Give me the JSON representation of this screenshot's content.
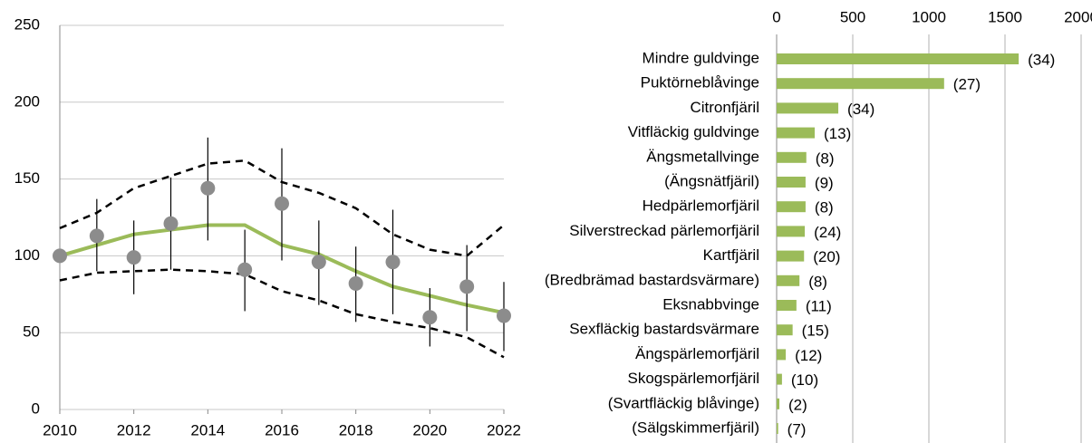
{
  "chart_data": [
    {
      "type": "line",
      "x": [
        2010,
        2011,
        2012,
        2013,
        2014,
        2015,
        2016,
        2017,
        2018,
        2019,
        2020,
        2021,
        2022
      ],
      "values": [
        100,
        113,
        99,
        121,
        144,
        91,
        134,
        96,
        82,
        96,
        60,
        80,
        61
      ],
      "low": [
        100,
        90,
        75,
        91,
        110,
        64,
        97,
        68,
        57,
        62,
        41,
        51,
        38
      ],
      "high": [
        100,
        137,
        123,
        151,
        177,
        117,
        170,
        123,
        106,
        130,
        79,
        107,
        83
      ],
      "trend": [
        100,
        107,
        114,
        117,
        120,
        120,
        107,
        101,
        90,
        80,
        74,
        68,
        63
      ],
      "upper": [
        118,
        128,
        144,
        152,
        160,
        162,
        148,
        141,
        131,
        114,
        104,
        100,
        120
      ],
      "lower": [
        84,
        89,
        90,
        91,
        90,
        88,
        77,
        71,
        62,
        57,
        53,
        47,
        34
      ],
      "point_color": "#8c8c8c",
      "trend_color": "#9bbb59",
      "band_color": "#000000",
      "xlim": [
        2010,
        2022
      ],
      "xticks": [
        2010,
        2012,
        2014,
        2016,
        2018,
        2020,
        2022
      ],
      "ylim": [
        0,
        250
      ],
      "yticks": [
        0,
        50,
        100,
        150,
        200,
        250
      ],
      "grid": true
    },
    {
      "type": "barh",
      "categories": [
        "Mindre guldvinge",
        "Puktörneblåvinge",
        "Citronfjäril",
        "Vitfläckig guldvinge",
        "Ängsmetallvinge",
        "(Ängsnätfjäril)",
        "Hedpärlemorfjäril",
        "Silverstreckad pärlemorfjäril",
        "Kartfjäril",
        "(Bredbrämad bastardsvärmare)",
        "Eksnabbvinge",
        "Sexfläckig bastardsvärmare",
        "Ängspärlemorfjäril",
        "Skogspärlemorfjäril",
        "(Svartfläckig blåvinge)",
        "(Sälgskimmerfjäril)"
      ],
      "values": [
        1590,
        1100,
        405,
        250,
        195,
        190,
        190,
        185,
        180,
        150,
        130,
        105,
        60,
        35,
        18,
        10
      ],
      "count_labels": [
        "(34)",
        "(27)",
        "(34)",
        "(13)",
        "(8)",
        "(9)",
        "(8)",
        "(24)",
        "(20)",
        "(8)",
        "(11)",
        "(15)",
        "(12)",
        "(10)",
        "(2)",
        "(7)"
      ],
      "color": "#9bbb59",
      "xlim": [
        0,
        2000
      ],
      "xticks": [
        0,
        500,
        1000,
        1500,
        2000
      ],
      "grid": true
    }
  ]
}
